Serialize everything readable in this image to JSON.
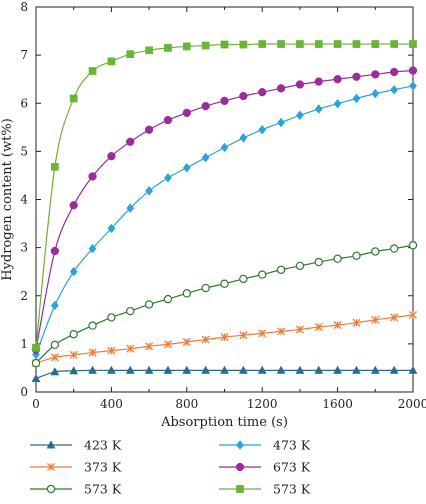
{
  "chart_data": {
    "type": "line",
    "title": "",
    "xlabel": "Absorption time (s)",
    "ylabel": "Hydrogen content (wt%)",
    "xlim": [
      0,
      2000
    ],
    "ylim": [
      0,
      8
    ],
    "xticks": [
      0,
      400,
      800,
      1200,
      1600,
      2000
    ],
    "yticks": [
      0,
      1,
      2,
      3,
      4,
      5,
      6,
      7,
      8
    ],
    "grid": false,
    "legend_position": "bottom (below plot, two columns)",
    "series": [
      {
        "name": "423 K",
        "color": "#2a6b8f",
        "marker": "triangle",
        "x": [
          0,
          100,
          200,
          300,
          400,
          500,
          600,
          700,
          800,
          900,
          1000,
          1100,
          1200,
          1300,
          1400,
          1500,
          1600,
          1700,
          1800,
          1900,
          2000
        ],
        "y": [
          0.28,
          0.42,
          0.44,
          0.45,
          0.45,
          0.45,
          0.45,
          0.45,
          0.45,
          0.45,
          0.45,
          0.45,
          0.45,
          0.45,
          0.45,
          0.45,
          0.45,
          0.45,
          0.45,
          0.45,
          0.45
        ]
      },
      {
        "name": "373 K",
        "color": "#f07b3b",
        "marker": "x",
        "x": [
          0,
          100,
          200,
          300,
          400,
          500,
          600,
          700,
          800,
          900,
          1000,
          1100,
          1200,
          1300,
          1400,
          1500,
          1600,
          1700,
          1800,
          1900,
          2000
        ],
        "y": [
          0.6,
          0.72,
          0.77,
          0.82,
          0.86,
          0.9,
          0.95,
          0.99,
          1.04,
          1.09,
          1.14,
          1.18,
          1.22,
          1.26,
          1.3,
          1.35,
          1.39,
          1.44,
          1.5,
          1.55,
          1.6
        ]
      },
      {
        "name": "573 K",
        "color": "#2f7a2f",
        "marker": "open-circle",
        "x": [
          0,
          100,
          200,
          300,
          400,
          500,
          600,
          700,
          800,
          900,
          1000,
          1100,
          1200,
          1300,
          1400,
          1500,
          1600,
          1700,
          1800,
          1900,
          2000
        ],
        "y": [
          0.6,
          0.98,
          1.2,
          1.38,
          1.55,
          1.68,
          1.82,
          1.93,
          2.05,
          2.16,
          2.25,
          2.35,
          2.44,
          2.54,
          2.62,
          2.7,
          2.77,
          2.83,
          2.92,
          2.98,
          3.05
        ]
      },
      {
        "name": "473 K",
        "color": "#29a3d8",
        "marker": "diamond",
        "x": [
          0,
          100,
          200,
          300,
          400,
          500,
          600,
          700,
          800,
          900,
          1000,
          1100,
          1200,
          1300,
          1400,
          1500,
          1600,
          1700,
          1800,
          1900,
          2000
        ],
        "y": [
          0.78,
          1.8,
          2.5,
          2.98,
          3.4,
          3.82,
          4.18,
          4.45,
          4.66,
          4.87,
          5.08,
          5.28,
          5.45,
          5.6,
          5.75,
          5.88,
          5.99,
          6.1,
          6.2,
          6.28,
          6.36
        ]
      },
      {
        "name": "673 K",
        "color": "#9b2c9b",
        "marker": "circle",
        "x": [
          0,
          100,
          200,
          300,
          400,
          500,
          600,
          700,
          800,
          900,
          1000,
          1100,
          1200,
          1300,
          1400,
          1500,
          1600,
          1700,
          1800,
          1900,
          2000
        ],
        "y": [
          0.88,
          2.93,
          3.88,
          4.48,
          4.9,
          5.2,
          5.45,
          5.65,
          5.8,
          5.94,
          6.05,
          6.15,
          6.23,
          6.31,
          6.39,
          6.45,
          6.5,
          6.55,
          6.6,
          6.65,
          6.68
        ]
      },
      {
        "name": "573 K",
        "color": "#6ab536",
        "marker": "square",
        "x": [
          0,
          100,
          200,
          300,
          400,
          500,
          600,
          700,
          800,
          900,
          1000,
          1100,
          1200,
          1300,
          1400,
          1500,
          1600,
          1700,
          1800,
          1900,
          2000
        ],
        "y": [
          0.92,
          4.68,
          6.1,
          6.67,
          6.87,
          7.02,
          7.1,
          7.15,
          7.18,
          7.2,
          7.22,
          7.22,
          7.23,
          7.23,
          7.23,
          7.23,
          7.23,
          7.23,
          7.23,
          7.23,
          7.23
        ]
      }
    ]
  }
}
